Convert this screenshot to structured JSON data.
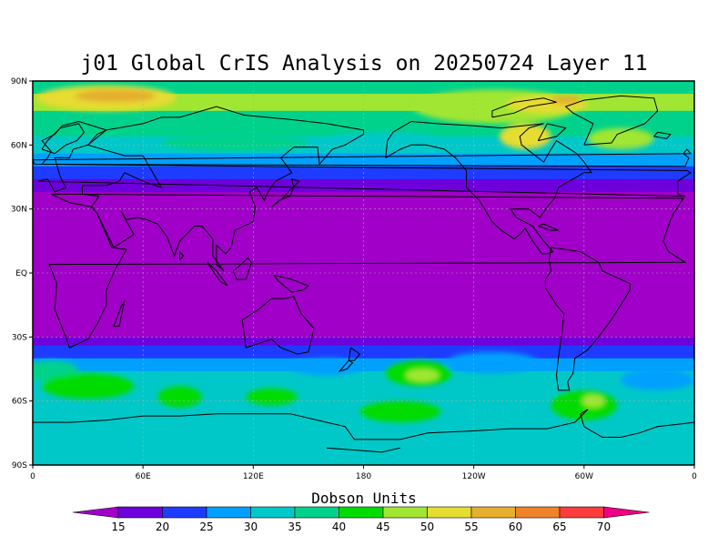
{
  "title": "j01 Global CrIS Analysis on 20250724 Layer 11",
  "lat_labels": [
    "90N",
    "60N",
    "30N",
    "EQ",
    "30S",
    "60S",
    "90S"
  ],
  "lon_labels": [
    "0",
    "60E",
    "120E",
    "180",
    "120W",
    "60W",
    "0"
  ],
  "colorbar": {
    "label": "Dobson Units",
    "tick_labels": [
      "15",
      "20",
      "25",
      "30",
      "35",
      "40",
      "45",
      "50",
      "55",
      "60",
      "65",
      "70"
    ],
    "colors": [
      "#a000c8",
      "#6e00dc",
      "#1e3cff",
      "#00a0ff",
      "#00c8c8",
      "#00d28c",
      "#00dc00",
      "#a0e632",
      "#e6dc32",
      "#e6af2d",
      "#f08228",
      "#fa3c3c",
      "#f00082"
    ]
  },
  "map": {
    "bands": [
      {
        "lat_top": 90,
        "lat_bottom": 84,
        "color": "#00d28c"
      },
      {
        "lat_top": 84,
        "lat_bottom": 76,
        "color": "#a0e632"
      },
      {
        "lat_top": 76,
        "lat_bottom": 64,
        "color": "#00d28c"
      },
      {
        "lat_top": 64,
        "lat_bottom": 56,
        "color": "#00c8c8"
      },
      {
        "lat_top": 56,
        "lat_bottom": 50,
        "color": "#00a0ff"
      },
      {
        "lat_top": 50,
        "lat_bottom": 44,
        "color": "#1e3cff"
      },
      {
        "lat_top": 44,
        "lat_bottom": 38,
        "color": "#6e00dc"
      },
      {
        "lat_top": 38,
        "lat_bottom": -30,
        "color": "#a000c8"
      },
      {
        "lat_top": -30,
        "lat_bottom": -34,
        "color": "#6e00dc"
      },
      {
        "lat_top": -34,
        "lat_bottom": -40,
        "color": "#1e3cff"
      },
      {
        "lat_top": -40,
        "lat_bottom": -46,
        "color": "#00a0ff"
      },
      {
        "lat_top": -46,
        "lat_bottom": -58,
        "color": "#00c8c8"
      },
      {
        "lat_top": -58,
        "lat_bottom": -66,
        "color": "#00c8c8"
      },
      {
        "lat_top": -66,
        "lat_bottom": -90,
        "color": "#00c8c8"
      }
    ],
    "blobs": [
      {
        "lon": 40,
        "lat": 82,
        "rlon": 38,
        "rlat": 6,
        "color": "#e6dc32"
      },
      {
        "lon": 45,
        "lat": 83,
        "rlon": 22,
        "rlat": 3,
        "color": "#e6af2d"
      },
      {
        "lon": 252,
        "lat": 78,
        "rlon": 45,
        "rlat": 8,
        "color": "#a0e632"
      },
      {
        "lon": 280,
        "lat": 79,
        "rlon": 22,
        "rlat": 4,
        "color": "#e6dc32"
      },
      {
        "lon": 290,
        "lat": 81,
        "rlon": 8,
        "rlat": 2,
        "color": "#e6af2d"
      },
      {
        "lon": 268,
        "lat": 64,
        "rlon": 14,
        "rlat": 6,
        "color": "#e6dc32"
      },
      {
        "lon": 320,
        "lat": 63,
        "rlon": 18,
        "rlat": 5,
        "color": "#a0e632"
      },
      {
        "lon": 190,
        "lat": 63,
        "rlon": 30,
        "rlat": 3,
        "color": "#00c8c8"
      },
      {
        "lon": 110,
        "lat": 61,
        "rlon": 40,
        "rlat": 4,
        "color": "#00d28c"
      },
      {
        "lon": 10,
        "lat": -46,
        "rlon": 15,
        "rlat": 5,
        "color": "#00d28c"
      },
      {
        "lon": 30,
        "lat": -53,
        "rlon": 25,
        "rlat": 6,
        "color": "#00dc00"
      },
      {
        "lon": 80,
        "lat": -58,
        "rlon": 12,
        "rlat": 5,
        "color": "#00dc00"
      },
      {
        "lon": 130,
        "lat": -58,
        "rlon": 14,
        "rlat": 4,
        "color": "#00dc00"
      },
      {
        "lon": 210,
        "lat": -47,
        "rlon": 18,
        "rlat": 6,
        "color": "#00dc00"
      },
      {
        "lon": 212,
        "lat": -48,
        "rlon": 9,
        "rlat": 3,
        "color": "#a0e632"
      },
      {
        "lon": 200,
        "lat": -65,
        "rlon": 22,
        "rlat": 5,
        "color": "#00dc00"
      },
      {
        "lon": 300,
        "lat": -62,
        "rlon": 18,
        "rlat": 7,
        "color": "#00dc00"
      },
      {
        "lon": 305,
        "lat": -60,
        "rlon": 6,
        "rlat": 3,
        "color": "#a0e632"
      },
      {
        "lon": 250,
        "lat": -42,
        "rlon": 25,
        "rlat": 5,
        "color": "#00a0ff"
      },
      {
        "lon": 160,
        "lat": -44,
        "rlon": 20,
        "rlat": 4,
        "color": "#00a0ff"
      },
      {
        "lon": 340,
        "lat": -50,
        "rlon": 20,
        "rlat": 5,
        "color": "#00a0ff"
      }
    ]
  }
}
